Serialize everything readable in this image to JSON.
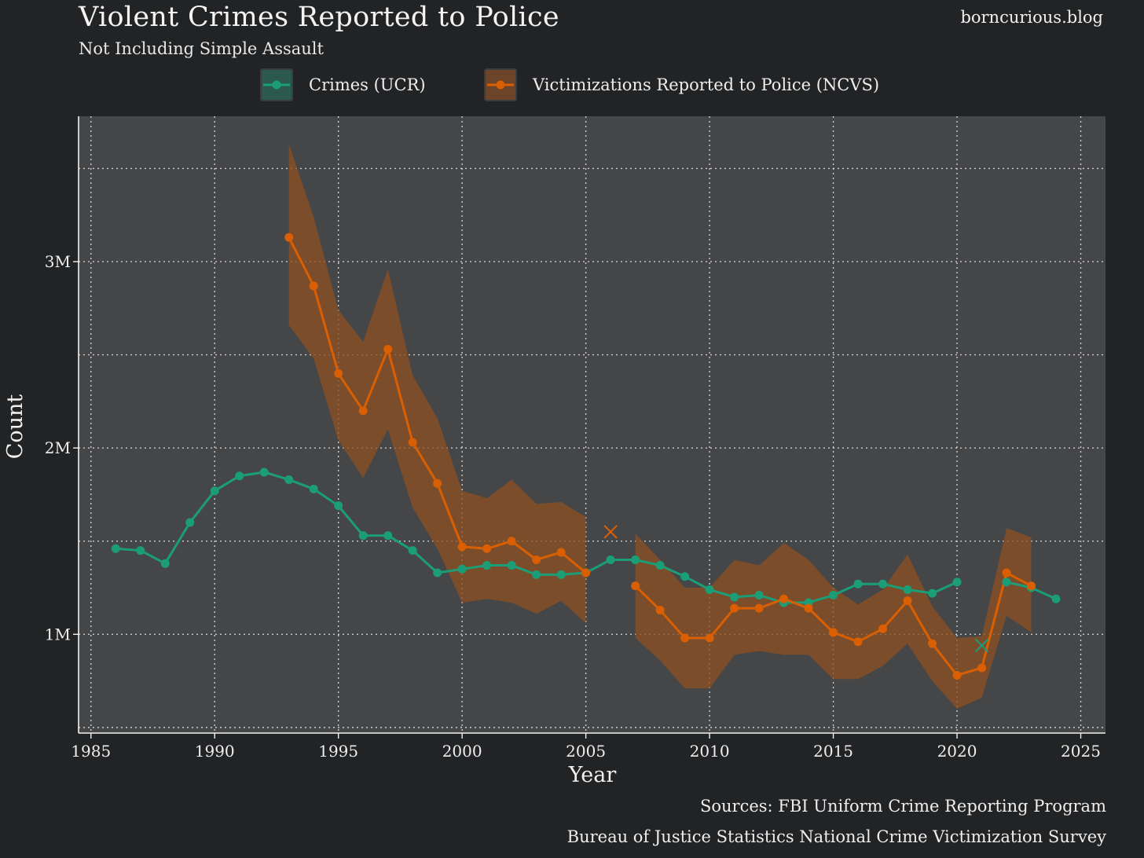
{
  "header": {
    "title": "Violent Crimes Reported to Police",
    "subtitle": "Not Including Simple Assault",
    "site": "borncurious.blog"
  },
  "legend": {
    "ucr": "Crimes (UCR)",
    "ncvs": "Victimizations Reported to Police (NCVS)"
  },
  "colors": {
    "ucr": "#1b9e77",
    "ncvs": "#d95f02",
    "band": "#8a4f22",
    "panel": "#454648",
    "background": "#222325"
  },
  "sources": {
    "line1": "Sources: FBI Uniform Crime Reporting Program",
    "line2": "Bureau of Justice Statistics National Crime Victimization Survey"
  },
  "chart_data": {
    "type": "line",
    "title": "Violent Crimes Reported to Police",
    "subtitle": "Not Including Simple Assault",
    "xlabel": "Year",
    "ylabel": "Count",
    "xlim": [
      1984.5,
      2026
    ],
    "ylim": [
      0.47,
      3.78
    ],
    "y_unit": "M",
    "x_ticks": [
      1985,
      1990,
      1995,
      2000,
      2005,
      2010,
      2015,
      2020,
      2025
    ],
    "y_ticks": [
      1,
      2,
      3
    ],
    "y_tick_labels": [
      "1M",
      "2M",
      "3M"
    ],
    "y_minor_grid": [
      0.5,
      1.5,
      2.5,
      3.5
    ],
    "grid": true,
    "legend_position": "top",
    "series": [
      {
        "name": "Crimes (UCR)",
        "color": "#1b9e77",
        "segments": [
          {
            "x": [
              1986,
              1987,
              1988,
              1989,
              1990,
              1991,
              1992,
              1993,
              1994,
              1995,
              1996,
              1997,
              1998,
              1999,
              2000,
              2001,
              2002,
              2003,
              2004,
              2005,
              2006,
              2007,
              2008,
              2009,
              2010,
              2011,
              2012,
              2013,
              2014,
              2015,
              2016,
              2017,
              2018,
              2019,
              2020
            ],
            "y": [
              1.46,
              1.45,
              1.38,
              1.6,
              1.77,
              1.85,
              1.87,
              1.83,
              1.78,
              1.69,
              1.53,
              1.53,
              1.45,
              1.33,
              1.35,
              1.37,
              1.37,
              1.32,
              1.32,
              1.33,
              1.4,
              1.4,
              1.37,
              1.31,
              1.24,
              1.2,
              1.21,
              1.17,
              1.17,
              1.21,
              1.27,
              1.27,
              1.24,
              1.22,
              1.28
            ]
          },
          {
            "x": [
              2022,
              2023,
              2024
            ],
            "y": [
              1.28,
              1.25,
              1.19
            ]
          }
        ],
        "imputed": [
          {
            "x": 2021,
            "y": 0.94
          }
        ]
      },
      {
        "name": "Victimizations Reported to Police (NCVS)",
        "color": "#d95f02",
        "segments": [
          {
            "x": [
              1993,
              1994,
              1995,
              1996,
              1997,
              1998,
              1999,
              2000,
              2001,
              2002,
              2003,
              2004,
              2005
            ],
            "y": [
              3.13,
              2.87,
              2.4,
              2.2,
              2.53,
              2.03,
              1.81,
              1.47,
              1.46,
              1.5,
              1.4,
              1.44,
              1.33
            ],
            "lower": [
              2.66,
              2.48,
              2.04,
              1.84,
              2.1,
              1.68,
              1.46,
              1.17,
              1.19,
              1.17,
              1.11,
              1.18,
              1.06
            ],
            "upper": [
              3.63,
              3.24,
              2.74,
              2.57,
              2.96,
              2.39,
              2.16,
              1.77,
              1.73,
              1.83,
              1.7,
              1.71,
              1.63
            ]
          },
          {
            "x": [
              2007,
              2008,
              2009,
              2010,
              2011,
              2012,
              2013,
              2014,
              2015,
              2016,
              2017,
              2018,
              2019,
              2020,
              2021,
              2022,
              2023
            ],
            "y": [
              1.26,
              1.13,
              0.98,
              0.98,
              1.14,
              1.14,
              1.19,
              1.14,
              1.01,
              0.96,
              1.03,
              1.18,
              0.95,
              0.78,
              0.82,
              1.33,
              1.26
            ],
            "lower": [
              0.98,
              0.86,
              0.71,
              0.71,
              0.89,
              0.91,
              0.89,
              0.89,
              0.76,
              0.76,
              0.83,
              0.95,
              0.75,
              0.6,
              0.66,
              1.1,
              1.01
            ],
            "upper": [
              1.54,
              1.4,
              1.25,
              1.25,
              1.4,
              1.37,
              1.49,
              1.4,
              1.25,
              1.16,
              1.24,
              1.43,
              1.15,
              0.98,
              0.99,
              1.57,
              1.52
            ]
          }
        ],
        "imputed": [
          {
            "x": 2006,
            "y": 1.55
          }
        ]
      }
    ]
  }
}
